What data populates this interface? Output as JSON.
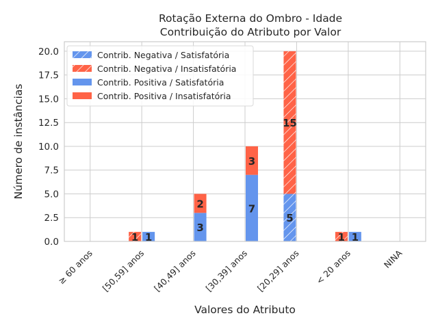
{
  "chart_data": {
    "type": "bar",
    "title": "Rotação Externa do Ombro - Idade",
    "subtitle": "Contribuição do Atributo por Valor",
    "xlabel": "Valores do Atributo",
    "ylabel": "Número de instâncias",
    "ylim": [
      0,
      21
    ],
    "yticks": [
      0.0,
      2.5,
      5.0,
      7.5,
      10.0,
      12.5,
      15.0,
      17.5,
      20.0
    ],
    "ytick_labels": [
      "0.0",
      "2.5",
      "5.0",
      "7.5",
      "10.0",
      "12.5",
      "15.0",
      "17.5",
      "20.0"
    ],
    "grid": true,
    "legend_position": "upper-left",
    "categories": [
      "≥ 60 anos",
      "[50,59] anos",
      "[40,49] anos",
      "[30,39] anos",
      "[20,29] anos",
      "< 20 anos",
      "NINA"
    ],
    "colors": {
      "satisfatoria": "#6495ED",
      "insatisfatoria": "#FF6347"
    },
    "series": [
      {
        "name": "Contrib. Negativa / Satisfatória",
        "group": "negativa",
        "hatch": true,
        "color": "#6495ED",
        "values": [
          0,
          0,
          0,
          0,
          5,
          0,
          0
        ]
      },
      {
        "name": "Contrib. Negativa / Insatisfatória",
        "group": "negativa",
        "hatch": true,
        "color": "#FF6347",
        "values": [
          0,
          1,
          0,
          0,
          15,
          1,
          0
        ]
      },
      {
        "name": "Contrib. Positiva / Satisfatória",
        "group": "positiva",
        "hatch": false,
        "color": "#6495ED",
        "values": [
          0,
          1,
          3,
          7,
          0,
          1,
          0
        ]
      },
      {
        "name": "Contrib. Positiva / Insatisfatória",
        "group": "positiva",
        "hatch": false,
        "color": "#FF6347",
        "values": [
          0,
          0,
          2,
          3,
          0,
          0,
          0
        ]
      }
    ]
  }
}
